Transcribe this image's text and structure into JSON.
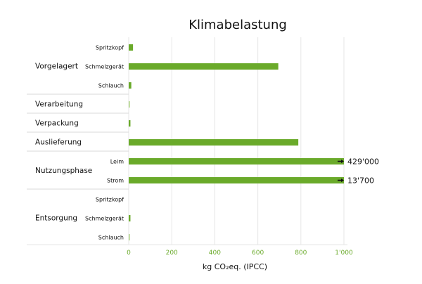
{
  "chart_data": {
    "type": "bar",
    "orientation": "horizontal",
    "title": "Klimabelastung",
    "xlabel": "kg CO₂eq. (IPCC)",
    "ylabel": "",
    "xlim": [
      0,
      1000
    ],
    "xticks": [
      "0",
      "200",
      "400",
      "600",
      "800",
      "1'000"
    ],
    "grid": true,
    "groups": [
      {
        "label": "Vorgelagert",
        "rows": [
          {
            "label": "Spritzkopf",
            "value": 20
          },
          {
            "label": "Schmelzgerät",
            "value": 695
          },
          {
            "label": "Schlauch",
            "value": 12
          }
        ]
      },
      {
        "label": "Verarbeitung",
        "rows": [
          {
            "label": "",
            "value": 5
          }
        ]
      },
      {
        "label": "Verpackung",
        "rows": [
          {
            "label": "",
            "value": 8
          }
        ]
      },
      {
        "label": "Auslieferung",
        "rows": [
          {
            "label": "",
            "value": 788
          }
        ]
      },
      {
        "label": "Nutzungsphase",
        "rows": [
          {
            "label": "Leim",
            "value": 1000,
            "overflow_label": "429'000"
          },
          {
            "label": "Strom",
            "value": 1000,
            "overflow_label": "13'700"
          }
        ]
      },
      {
        "label": "Entsorgung",
        "rows": [
          {
            "label": "Spritzkopf",
            "value": 0
          },
          {
            "label": "Schmelzgerät",
            "value": 8
          },
          {
            "label": "Schlauch",
            "value": 4
          }
        ]
      }
    ],
    "colors": {
      "bar": "#6aaa2a",
      "bar_light": "#a9cf7e",
      "tick": "#6aaa2a",
      "grid": "#e6e6e6",
      "divider": "#d9d9d9",
      "text": "#111111"
    }
  }
}
